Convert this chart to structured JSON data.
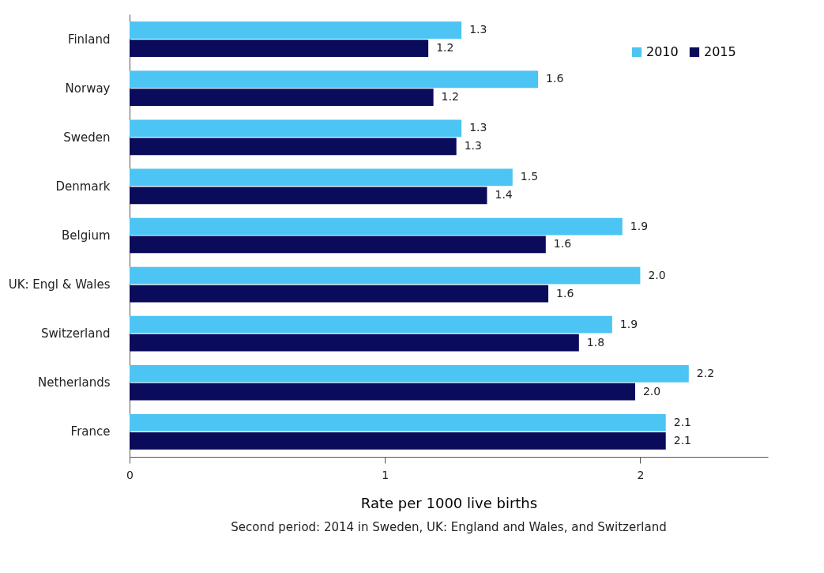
{
  "chart_data": {
    "type": "bar",
    "orientation": "horizontal",
    "xlabel": "Rate per 1000 live births",
    "categories": [
      "Finland",
      "Norway",
      "Sweden",
      "Denmark",
      "Belgium",
      "UK: Engl & Wales",
      "Switzerland",
      "Netherlands",
      "France"
    ],
    "series": [
      {
        "name": "2010",
        "color": "#4cc4f4",
        "values": [
          1.3,
          1.6,
          1.3,
          1.5,
          1.93,
          2.0,
          1.89,
          2.19,
          2.1
        ],
        "value_labels": [
          "1.3",
          "1.6",
          "1.3",
          "1.5",
          "1.9",
          "2.0",
          "1.9",
          "2.2",
          "2.1"
        ]
      },
      {
        "name": "2015",
        "color": "#0b0b5c",
        "values": [
          1.17,
          1.19,
          1.28,
          1.4,
          1.63,
          1.64,
          1.76,
          1.98,
          2.1
        ],
        "value_labels": [
          "1.2",
          "1.2",
          "1.3",
          "1.4",
          "1.6",
          "1.6",
          "1.8",
          "2.0",
          "2.1"
        ]
      }
    ],
    "xlim": [
      0,
      2.5
    ],
    "xticks": [
      0,
      1,
      2
    ],
    "grid": false,
    "legend": "top right",
    "annotations": [
      "Second period: 2014 in Sweden, UK: England and Wales, and Switzerland"
    ]
  }
}
